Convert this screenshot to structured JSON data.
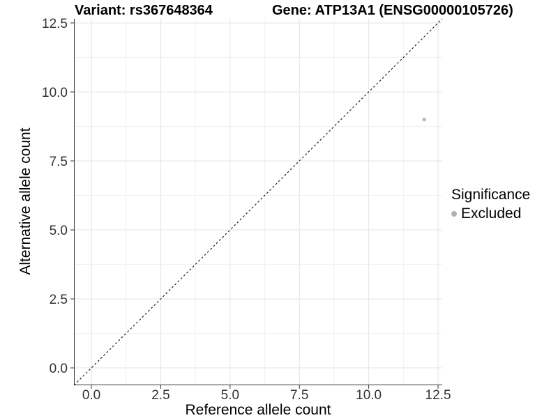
{
  "header": {
    "variant_title": "Variant: rs367648364",
    "gene_title": "Gene: ATP13A1 (ENSG00000105726)"
  },
  "chart_data": {
    "type": "scatter",
    "xlabel": "Reference allele count",
    "ylabel": "Alternative allele count",
    "xlim": [
      -0.63,
      12.65
    ],
    "ylim": [
      -0.63,
      12.65
    ],
    "x_ticks": [
      0,
      2.5,
      5,
      7.5,
      10,
      12.5
    ],
    "y_ticks": [
      0,
      2.5,
      5,
      7.5,
      10,
      12.5
    ],
    "minor_gridlines": [
      1.25,
      3.75,
      6.25,
      8.75,
      11.25
    ],
    "grid": "major+minor",
    "tick_decimals": 1,
    "reference_line": {
      "type": "identity",
      "slope": 1,
      "intercept": 0,
      "style": "dashed",
      "color": "#000000",
      "dash": "3,3"
    },
    "point_radius": 2.8,
    "series": [
      {
        "name": "Excluded",
        "color": "#bcbcbc",
        "points": [
          {
            "x": 12,
            "y": 9
          }
        ]
      }
    ],
    "legend": {
      "title": "Significance",
      "position": "right",
      "items": [
        {
          "label": "Excluded",
          "color": "#b0b0b0"
        }
      ]
    },
    "colors": {
      "grid_major": "#e4e4e4",
      "grid_minor": "#f1f1f1",
      "axis": "#333333",
      "tick_label": "#333333",
      "panel_background": "#ffffff"
    }
  }
}
